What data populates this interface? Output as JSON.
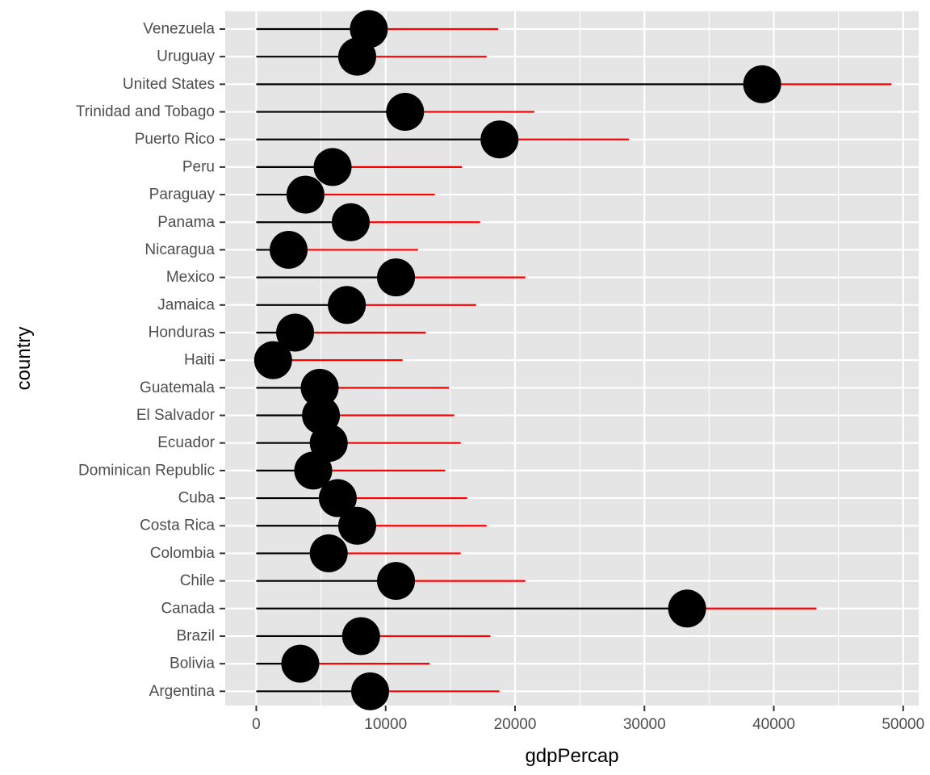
{
  "chart_data": {
    "type": "lollipop",
    "xlabel": "gdpPercap",
    "ylabel": "country",
    "xlim": [
      -2400,
      51200
    ],
    "x_ticks": [
      0,
      10000,
      20000,
      30000,
      40000,
      50000
    ],
    "x_tick_labels": [
      "0",
      "10000",
      "20000",
      "30000",
      "40000",
      "50000"
    ],
    "categories": [
      "Argentina",
      "Bolivia",
      "Brazil",
      "Canada",
      "Chile",
      "Colombia",
      "Costa Rica",
      "Cuba",
      "Dominican Republic",
      "Ecuador",
      "El Salvador",
      "Guatemala",
      "Haiti",
      "Honduras",
      "Jamaica",
      "Mexico",
      "Nicaragua",
      "Panama",
      "Paraguay",
      "Peru",
      "Puerto Rico",
      "Trinidad and Tobago",
      "United States",
      "Uruguay",
      "Venezuela"
    ],
    "series": [
      {
        "name": "",
        "values": [
          8800,
          3400,
          8100,
          33300,
          10800,
          5600,
          7800,
          6300,
          4400,
          5600,
          5000,
          4900,
          1300,
          3000,
          7000,
          10800,
          2500,
          7300,
          3800,
          5900,
          18800,
          11500,
          39100,
          7800,
          8700
        ]
      },
      {
        "name": "",
        "values": [
          18800,
          13400,
          18100,
          43300,
          20800,
          15800,
          17800,
          16300,
          14600,
          15800,
          15300,
          14900,
          11300,
          13100,
          17000,
          20800,
          12500,
          17300,
          13800,
          15900,
          28800,
          21500,
          49100,
          17800,
          18700
        ]
      }
    ],
    "colors": {
      "stem": "#000000",
      "extension": "#ff0000",
      "point": "#000000",
      "panel": "#e5e5e5",
      "grid": "#ffffff"
    },
    "grid": true,
    "legend": "none"
  }
}
